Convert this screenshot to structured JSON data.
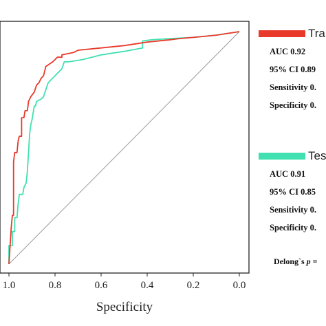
{
  "chart_data": {
    "type": "line",
    "xlabel": "Specificity",
    "ylabel": "",
    "xlim": [
      1.0,
      0.0
    ],
    "ylim": [
      0.0,
      1.0
    ],
    "x_ticks": [
      "1.0",
      "0.8",
      "0.6",
      "0.4",
      "0.2",
      "0.0"
    ],
    "diagonal": true,
    "grid": false,
    "series": [
      {
        "name": "Tra",
        "color": "#e8392a",
        "points": [
          [
            1.0,
            0.0
          ],
          [
            0.99,
            0.16
          ],
          [
            0.985,
            0.21
          ],
          [
            0.98,
            0.21
          ],
          [
            0.98,
            0.44
          ],
          [
            0.975,
            0.48
          ],
          [
            0.965,
            0.48
          ],
          [
            0.96,
            0.53
          ],
          [
            0.955,
            0.55
          ],
          [
            0.945,
            0.55
          ],
          [
            0.945,
            0.63
          ],
          [
            0.935,
            0.63
          ],
          [
            0.93,
            0.66
          ],
          [
            0.92,
            0.66
          ],
          [
            0.915,
            0.7
          ],
          [
            0.905,
            0.72
          ],
          [
            0.89,
            0.74
          ],
          [
            0.88,
            0.77
          ],
          [
            0.87,
            0.78
          ],
          [
            0.86,
            0.8
          ],
          [
            0.85,
            0.81
          ],
          [
            0.84,
            0.85
          ],
          [
            0.81,
            0.87
          ],
          [
            0.8,
            0.88
          ],
          [
            0.79,
            0.89
          ],
          [
            0.77,
            0.89
          ],
          [
            0.77,
            0.9
          ],
          [
            0.72,
            0.91
          ],
          [
            0.7,
            0.92
          ],
          [
            0.6,
            0.93
          ],
          [
            0.5,
            0.94
          ],
          [
            0.4,
            0.955
          ],
          [
            0.3,
            0.965
          ],
          [
            0.26,
            0.97
          ],
          [
            0.2,
            0.975
          ],
          [
            0.1,
            0.985
          ],
          [
            0.0,
            1.0
          ]
        ]
      },
      {
        "name": "Tes",
        "color": "#40e0b0",
        "points": [
          [
            1.0,
            0.0
          ],
          [
            1.0,
            0.08
          ],
          [
            0.985,
            0.08
          ],
          [
            0.985,
            0.14
          ],
          [
            0.975,
            0.14
          ],
          [
            0.975,
            0.2
          ],
          [
            0.965,
            0.2
          ],
          [
            0.96,
            0.26
          ],
          [
            0.955,
            0.3
          ],
          [
            0.94,
            0.3
          ],
          [
            0.935,
            0.33
          ],
          [
            0.925,
            0.35
          ],
          [
            0.92,
            0.4
          ],
          [
            0.915,
            0.48
          ],
          [
            0.91,
            0.56
          ],
          [
            0.905,
            0.6
          ],
          [
            0.9,
            0.62
          ],
          [
            0.895,
            0.65
          ],
          [
            0.89,
            0.68
          ],
          [
            0.885,
            0.68
          ],
          [
            0.88,
            0.7
          ],
          [
            0.86,
            0.71
          ],
          [
            0.85,
            0.72
          ],
          [
            0.84,
            0.75
          ],
          [
            0.83,
            0.78
          ],
          [
            0.81,
            0.8
          ],
          [
            0.8,
            0.81
          ],
          [
            0.79,
            0.82
          ],
          [
            0.77,
            0.84
          ],
          [
            0.76,
            0.87
          ],
          [
            0.74,
            0.87
          ],
          [
            0.68,
            0.88
          ],
          [
            0.64,
            0.89
          ],
          [
            0.6,
            0.9
          ],
          [
            0.5,
            0.915
          ],
          [
            0.42,
            0.93
          ],
          [
            0.42,
            0.96
          ],
          [
            0.38,
            0.965
          ],
          [
            0.3,
            0.97
          ],
          [
            0.2,
            0.975
          ],
          [
            0.1,
            0.985
          ],
          [
            0.0,
            1.0
          ]
        ]
      }
    ],
    "legend": [
      {
        "title": "Tra",
        "color": "#e8392a",
        "lines": [
          "AUC 0.92",
          "95% CI 0.89",
          "Sensitivity 0.",
          "Specificity 0."
        ]
      },
      {
        "title": "Tes",
        "color": "#40e0b0",
        "lines": [
          "AUC 0.91",
          "95% CI 0.85",
          "Sensitivity 0.",
          "Specificity 0."
        ]
      }
    ],
    "annotation": {
      "prefix": "Delong`s ",
      "italic": "p",
      "suffix": " ="
    }
  }
}
